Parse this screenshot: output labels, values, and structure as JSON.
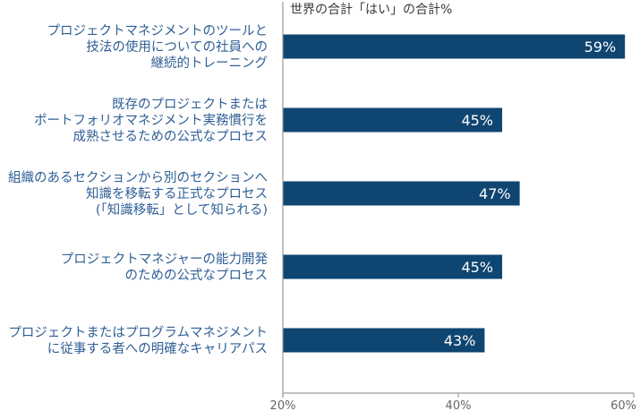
{
  "chart_data": {
    "type": "bar",
    "orientation": "horizontal",
    "title": "世界の合計「はい」の合計%",
    "categories": [
      [
        "プロジェクトマネジメントのツールと",
        "技法の使用についての社員への",
        "継続的トレーニング"
      ],
      [
        "既存のプロジェクトまたは",
        "ポートフォリオマネジメント実務慣行を",
        "成熟させるための公式なプロセス"
      ],
      [
        "組織のあるセクションから別のセクションへ",
        "知識を移転する正式なプロセス",
        "(「知識移転」として知られる)"
      ],
      [
        "プロジェクトマネジャーの能力開発",
        "のための公式なプロセス"
      ],
      [
        "プロジェクトまたはプログラムマネジメント",
        "に従事する者への明確なキャリアパス"
      ]
    ],
    "values": [
      59,
      45,
      47,
      45,
      43
    ],
    "value_labels": [
      "59%",
      "45%",
      "47%",
      "45%",
      "43%"
    ],
    "xlim": [
      20,
      60
    ],
    "xticks": [
      20,
      40,
      60
    ],
    "xtick_labels": [
      "20%",
      "40%",
      "60%"
    ],
    "grid": false,
    "legend": "none",
    "colors": {
      "bar": "#0f4571",
      "bar_value_text": "#ffffff",
      "category_text": "#2f5f95",
      "title_text": "#3a3a3a",
      "tick_text": "#666666",
      "axis": "#9a9a9a"
    }
  }
}
